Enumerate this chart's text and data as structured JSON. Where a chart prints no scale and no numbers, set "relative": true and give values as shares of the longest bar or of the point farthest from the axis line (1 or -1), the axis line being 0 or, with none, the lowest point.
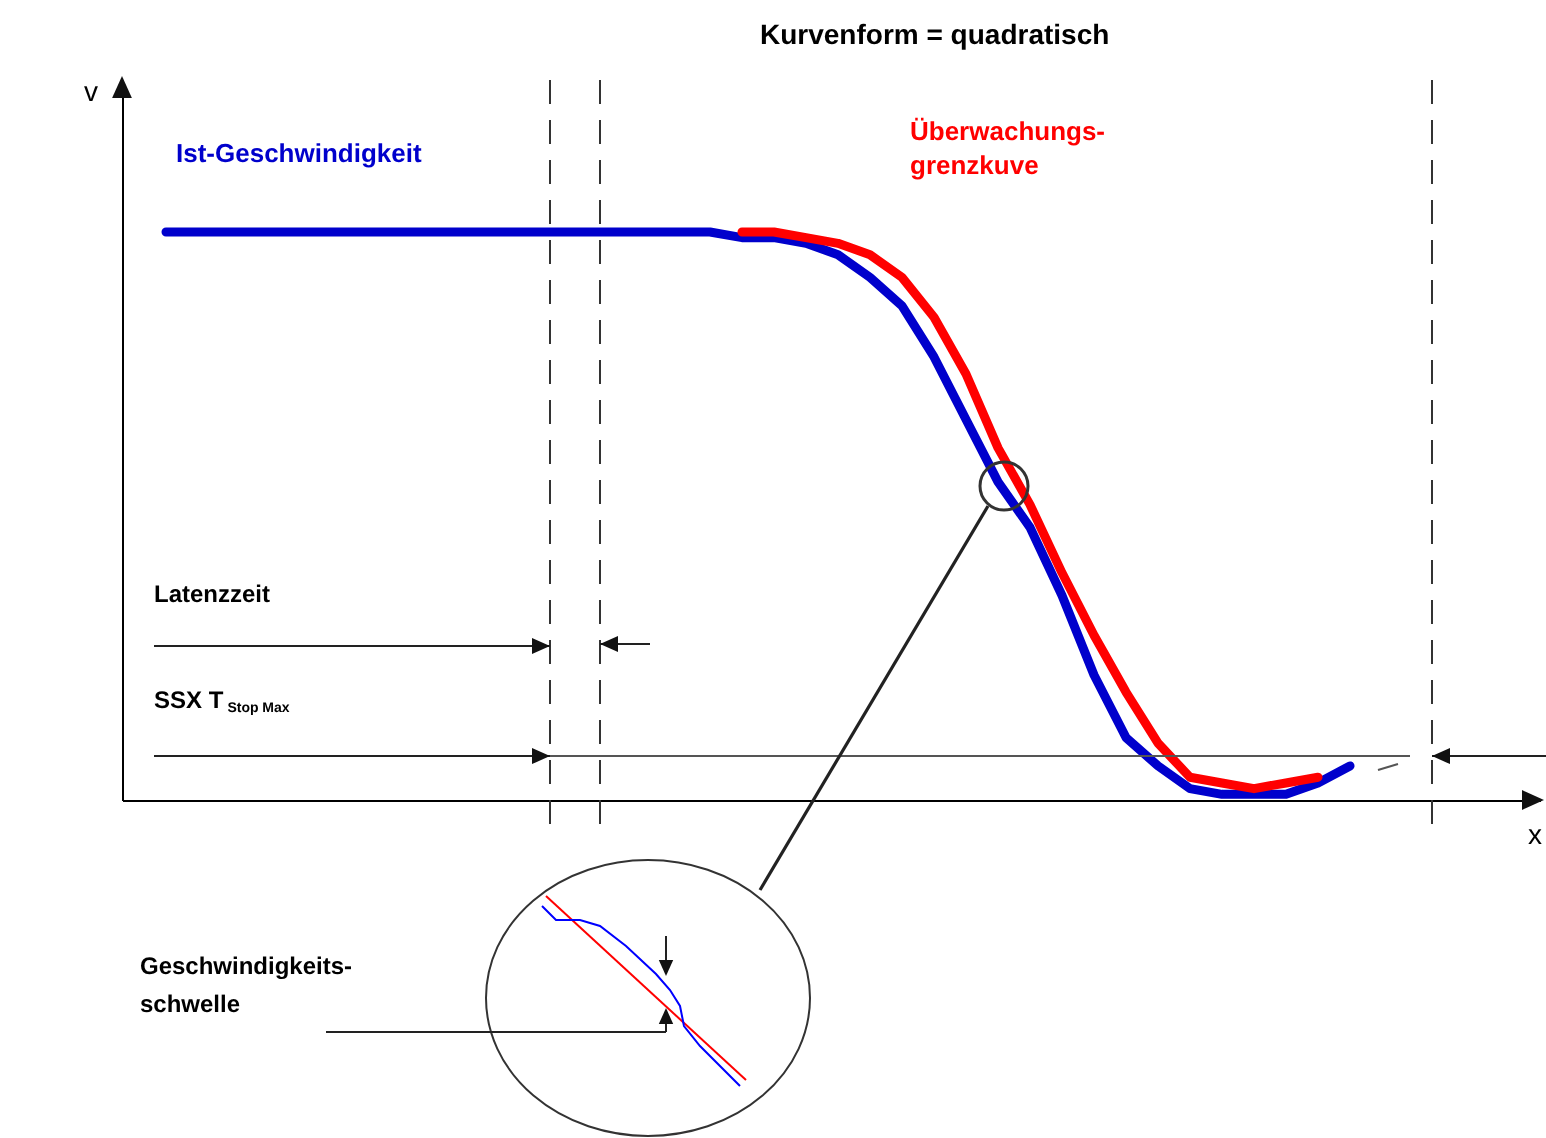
{
  "chart_data": {
    "type": "line",
    "title": "Kurvenform = quadratisch",
    "ylabel": "v",
    "relative": true,
    "categories": [
      null,
      null,
      null,
      null,
      null,
      null,
      null,
      null,
      null,
      null,
      null,
      null,
      null,
      null,
      null,
      null,
      null,
      null,
      null,
      null,
      null,
      null,
      null,
      null,
      null,
      null,
      null,
      null,
      null,
      null,
      null,
      null,
      null,
      null,
      null,
      null,
      null,
      null
    ],
    "series": [
      {
        "name": "Ist-Geschwindigkeit",
        "color": "#0000cc",
        "values": [
          1,
          1,
          1,
          1,
          1,
          1,
          1,
          1,
          1,
          1,
          1,
          1,
          1,
          1,
          1,
          1,
          1,
          1,
          0.99,
          0.99,
          0.98,
          0.96,
          0.92,
          0.87,
          0.78,
          0.67,
          0.56,
          0.48,
          0.36,
          0.22,
          0.11,
          0.06,
          0.02,
          0.01,
          0.01,
          0.01,
          0.03,
          0.06
        ]
      },
      {
        "name": "Überwachungs-grenzkuve",
        "color": "#ff0000",
        "values": [
          null,
          null,
          null,
          null,
          null,
          null,
          null,
          null,
          null,
          null,
          null,
          null,
          null,
          null,
          null,
          null,
          null,
          null,
          1,
          1,
          0.99,
          0.98,
          0.96,
          0.92,
          0.85,
          0.75,
          0.62,
          0.52,
          0.4,
          0.29,
          0.19,
          0.1,
          0.04,
          0.03,
          0.02,
          0.03,
          0.04,
          null
        ]
      }
    ],
    "ref_lines": [
      {
        "axis": "x",
        "color": "#333333",
        "line_style": "dashed"
      },
      {
        "axis": "x",
        "color": "#333333",
        "line_style": "dashed"
      },
      {
        "axis": "x",
        "color": "#333333",
        "line_style": "dashed"
      }
    ],
    "annotations": [
      "Latenzzeit",
      "SSX T$_{Stop Max}$",
      "Geschwindigkeits-schwelle",
      "x"
    ]
  }
}
